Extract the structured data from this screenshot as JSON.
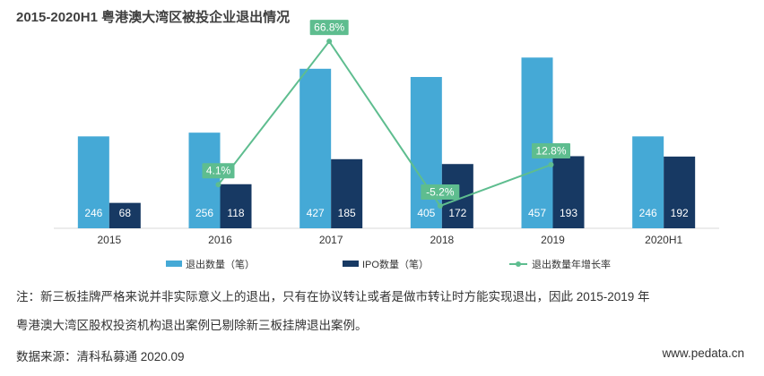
{
  "title": "2015-2020H1 粤港澳大湾区被投企业退出情况",
  "chart_data": {
    "type": "bar",
    "title": "2015-2020H1 粤港澳大湾区被投企业退出情况",
    "categories": [
      "2015",
      "2016",
      "2017",
      "2018",
      "2019",
      "2020H1"
    ],
    "series": [
      {
        "name": "退出数量（笔）",
        "type": "bar",
        "color": "#45a9d6",
        "values": [
          246,
          256,
          427,
          405,
          457,
          246
        ]
      },
      {
        "name": "IPO数量（笔）",
        "type": "bar",
        "color": "#173963",
        "values": [
          68,
          118,
          185,
          172,
          193,
          192
        ]
      },
      {
        "name": "退出数量年增长率",
        "type": "line",
        "color": "#5ebd8f",
        "values": [
          null,
          4.1,
          66.8,
          -5.2,
          12.8,
          null
        ],
        "labels": [
          "",
          "4.1%",
          "66.8%",
          "-5.2%",
          "12.8%",
          ""
        ]
      }
    ],
    "bar_ylim": [
      0,
      520
    ],
    "line_ylim": [
      -15,
      70
    ]
  },
  "footer": {
    "note_line1": "注：新三板挂牌严格来说并非实际意义上的退出，只有在协议转让或者是做市转让时方能实现退出，因此 2015-2019 年",
    "note_line2": "粤港澳大湾区股权投资机构退出案例已剔除新三板挂牌退出案例。",
    "source": "数据来源：清科私募通 2020.09",
    "website": "www.pedata.cn"
  }
}
